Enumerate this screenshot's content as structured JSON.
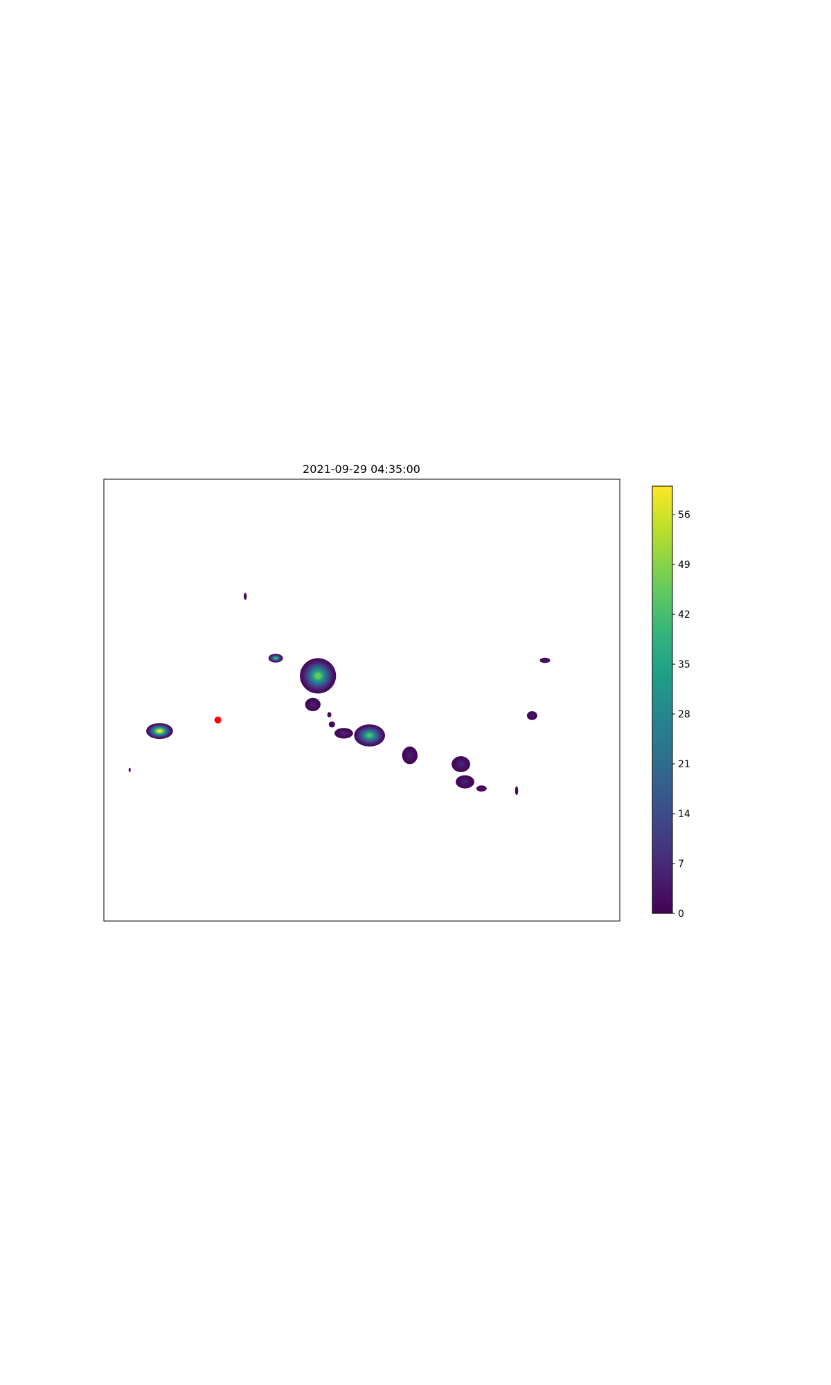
{
  "chart_data": {
    "type": "heatmap",
    "title": "2021-09-29 04:35:00",
    "xlabel": "",
    "ylabel": "",
    "colormap": "viridis",
    "colorbar": {
      "range": [
        0,
        60
      ],
      "ticks": [
        0,
        7,
        14,
        21,
        28,
        35,
        42,
        49,
        56
      ],
      "tick_labels": [
        "0",
        "7",
        "14",
        "21",
        "28",
        "35",
        "42",
        "49",
        "56"
      ]
    },
    "axes": {
      "ticks_visible": false,
      "grid": false
    },
    "cells": [
      {
        "x": 0.274,
        "y": 0.735,
        "rx": 0.003,
        "ry": 0.008,
        "peak": 2
      },
      {
        "x": 0.333,
        "y": 0.595,
        "rx": 0.014,
        "ry": 0.01,
        "peak": 40
      },
      {
        "x": 0.394,
        "y": 0.56,
        "rx": 0.005,
        "ry": 0.008,
        "peak": 2
      },
      {
        "x": 0.415,
        "y": 0.555,
        "rx": 0.035,
        "ry": 0.04,
        "peak": 45
      },
      {
        "x": 0.405,
        "y": 0.49,
        "rx": 0.015,
        "ry": 0.015,
        "peak": 5
      },
      {
        "x": 0.437,
        "y": 0.467,
        "rx": 0.004,
        "ry": 0.006,
        "peak": 2
      },
      {
        "x": 0.442,
        "y": 0.445,
        "rx": 0.006,
        "ry": 0.007,
        "peak": 2
      },
      {
        "x": 0.465,
        "y": 0.425,
        "rx": 0.018,
        "ry": 0.012,
        "peak": 6
      },
      {
        "x": 0.515,
        "y": 0.42,
        "rx": 0.03,
        "ry": 0.025,
        "peak": 42
      },
      {
        "x": 0.593,
        "y": 0.375,
        "rx": 0.015,
        "ry": 0.02,
        "peak": 4
      },
      {
        "x": 0.692,
        "y": 0.355,
        "rx": 0.018,
        "ry": 0.018,
        "peak": 6
      },
      {
        "x": 0.7,
        "y": 0.315,
        "rx": 0.018,
        "ry": 0.015,
        "peak": 5
      },
      {
        "x": 0.732,
        "y": 0.3,
        "rx": 0.01,
        "ry": 0.007,
        "peak": 2
      },
      {
        "x": 0.8,
        "y": 0.295,
        "rx": 0.003,
        "ry": 0.01,
        "peak": 2
      },
      {
        "x": 0.83,
        "y": 0.465,
        "rx": 0.01,
        "ry": 0.01,
        "peak": 3
      },
      {
        "x": 0.855,
        "y": 0.59,
        "rx": 0.01,
        "ry": 0.006,
        "peak": 3
      },
      {
        "x": 0.108,
        "y": 0.43,
        "rx": 0.026,
        "ry": 0.018,
        "peak": 60
      },
      {
        "x": 0.05,
        "y": 0.342,
        "rx": 0.002,
        "ry": 0.005,
        "peak": 2
      }
    ],
    "marker": {
      "x": 0.221,
      "y": 0.455,
      "color": "#ff0000"
    }
  }
}
